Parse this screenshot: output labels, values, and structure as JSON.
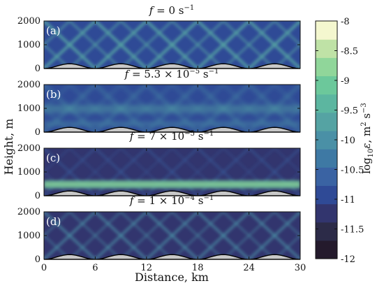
{
  "chart_data": {
    "type": "heatmap",
    "xlabel": "Distance, km",
    "ylabel": "Height, m",
    "colorbar_label": "log₁₀ε, m² s⁻³",
    "x_ticks": [
      "0",
      "6",
      "12",
      "18",
      "24",
      "30"
    ],
    "y_ticks": [
      "0",
      "1000",
      "2000"
    ],
    "xlim": [
      0,
      30
    ],
    "ylim": [
      0,
      2000
    ],
    "color_range": [
      -12,
      -8
    ],
    "colorbar_ticks": [
      "-8",
      "-8.5",
      "-9",
      "-9.5",
      "-10",
      "-10.5",
      "-11",
      "-11.5",
      "-12"
    ],
    "colormap": [
      "#241a2c",
      "#2c2b48",
      "#32356e",
      "#2f4a96",
      "#3a63a3",
      "#3e79a4",
      "#4a90a6",
      "#55a3a3",
      "#5cb6a0",
      "#6cc89b",
      "#90d69a",
      "#bfe2a6",
      "#f4f7cf"
    ],
    "topography": "five sinusoidal ridges, each about 6 km wide and 200 m high",
    "panels": [
      {
        "label": "(a)",
        "title_tex": "f = 0 s⁻¹",
        "pattern": "diamond beam pattern filling the full depth"
      },
      {
        "label": "(b)",
        "title_tex": "f = 5.3 × 10⁻⁵ s⁻¹",
        "pattern": "diffuse beams with enhanced dissipation near 1000 m"
      },
      {
        "label": "(c)",
        "title_tex": "f = 7 × 10⁻⁵ s⁻¹",
        "pattern": "strong dissipation layer near 500 m, weak above"
      },
      {
        "label": "(d)",
        "title_tex": "f = 1 × 10⁻⁴ s⁻¹",
        "pattern": "weaker diamond beam pattern"
      }
    ]
  }
}
